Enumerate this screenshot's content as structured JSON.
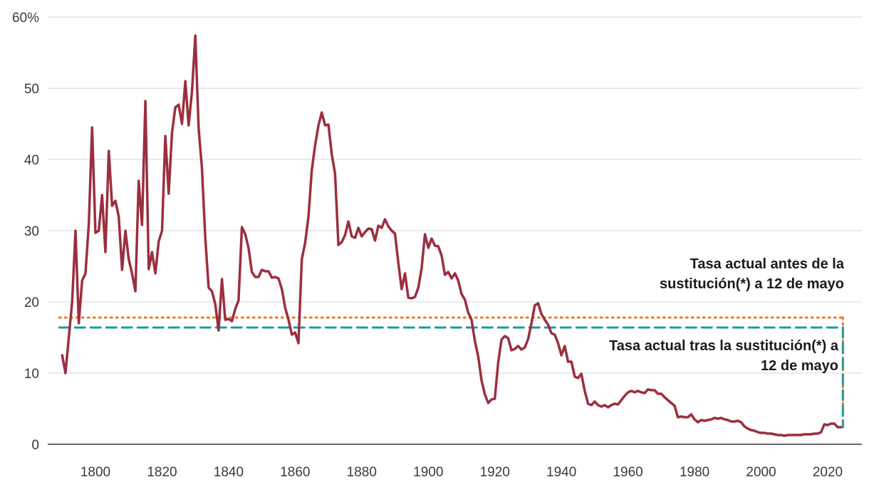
{
  "chart_data": {
    "type": "line",
    "x_ticks": [
      1800,
      1820,
      1840,
      1860,
      1880,
      1900,
      1920,
      1940,
      1960,
      1980,
      2000,
      2020
    ],
    "y_ticks": [
      0,
      10,
      20,
      30,
      40,
      50,
      60
    ],
    "y_tick_labels": [
      "0",
      "10",
      "20",
      "30",
      "40",
      "50",
      "60%"
    ],
    "xlim": [
      1785,
      2028
    ],
    "ylim": [
      0,
      60
    ],
    "grid": "horizontal",
    "series": [
      {
        "color": "#9b2f3f",
        "points": [
          [
            1790,
            12.5
          ],
          [
            1791,
            10.0
          ],
          [
            1792,
            15.0
          ],
          [
            1793,
            20.0
          ],
          [
            1794,
            30.0
          ],
          [
            1795,
            17.0
          ],
          [
            1796,
            23.0
          ],
          [
            1797,
            24.0
          ],
          [
            1798,
            31.0
          ],
          [
            1799,
            44.5
          ],
          [
            1800,
            29.7
          ],
          [
            1801,
            30.0
          ],
          [
            1802,
            35.0
          ],
          [
            1803,
            27.0
          ],
          [
            1804,
            41.2
          ],
          [
            1805,
            33.5
          ],
          [
            1806,
            34.2
          ],
          [
            1807,
            32.0
          ],
          [
            1808,
            24.5
          ],
          [
            1809,
            30.0
          ],
          [
            1810,
            26.0
          ],
          [
            1811,
            24.0
          ],
          [
            1812,
            21.5
          ],
          [
            1813,
            37.0
          ],
          [
            1814,
            30.8
          ],
          [
            1815,
            48.2
          ],
          [
            1816,
            24.6
          ],
          [
            1817,
            27.0
          ],
          [
            1818,
            24.0
          ],
          [
            1819,
            28.5
          ],
          [
            1820,
            30.0
          ],
          [
            1821,
            43.3
          ],
          [
            1822,
            35.2
          ],
          [
            1823,
            43.8
          ],
          [
            1824,
            47.3
          ],
          [
            1825,
            47.7
          ],
          [
            1826,
            45.0
          ],
          [
            1827,
            51.0
          ],
          [
            1828,
            44.8
          ],
          [
            1829,
            49.5
          ],
          [
            1830,
            57.4
          ],
          [
            1831,
            44.3
          ],
          [
            1832,
            38.8
          ],
          [
            1833,
            29.0
          ],
          [
            1834,
            22.0
          ],
          [
            1835,
            21.5
          ],
          [
            1836,
            19.7
          ],
          [
            1837,
            16.0
          ],
          [
            1838,
            23.2
          ],
          [
            1839,
            17.5
          ],
          [
            1840,
            17.6
          ],
          [
            1841,
            17.3
          ],
          [
            1842,
            19.0
          ],
          [
            1843,
            20.2
          ],
          [
            1844,
            30.5
          ],
          [
            1845,
            29.5
          ],
          [
            1846,
            27.6
          ],
          [
            1847,
            24.2
          ],
          [
            1848,
            23.5
          ],
          [
            1849,
            23.5
          ],
          [
            1850,
            24.5
          ],
          [
            1851,
            24.3
          ],
          [
            1852,
            24.3
          ],
          [
            1853,
            23.4
          ],
          [
            1854,
            23.5
          ],
          [
            1855,
            23.3
          ],
          [
            1856,
            21.8
          ],
          [
            1857,
            19.2
          ],
          [
            1858,
            17.5
          ],
          [
            1859,
            15.4
          ],
          [
            1860,
            15.7
          ],
          [
            1861,
            14.2
          ],
          [
            1862,
            26.0
          ],
          [
            1863,
            28.3
          ],
          [
            1864,
            32.0
          ],
          [
            1865,
            38.5
          ],
          [
            1866,
            42.0
          ],
          [
            1867,
            44.8
          ],
          [
            1868,
            46.6
          ],
          [
            1869,
            44.8
          ],
          [
            1870,
            44.9
          ],
          [
            1871,
            40.7
          ],
          [
            1872,
            38.0
          ],
          [
            1873,
            28.0
          ],
          [
            1874,
            28.4
          ],
          [
            1875,
            29.4
          ],
          [
            1876,
            31.3
          ],
          [
            1877,
            29.2
          ],
          [
            1878,
            29.0
          ],
          [
            1879,
            30.4
          ],
          [
            1880,
            29.2
          ],
          [
            1881,
            29.8
          ],
          [
            1882,
            30.3
          ],
          [
            1883,
            30.2
          ],
          [
            1884,
            28.6
          ],
          [
            1885,
            30.7
          ],
          [
            1886,
            30.4
          ],
          [
            1887,
            31.6
          ],
          [
            1888,
            30.6
          ],
          [
            1889,
            30.0
          ],
          [
            1890,
            29.6
          ],
          [
            1891,
            25.5
          ],
          [
            1892,
            21.8
          ],
          [
            1893,
            24.0
          ],
          [
            1894,
            20.6
          ],
          [
            1895,
            20.5
          ],
          [
            1896,
            20.7
          ],
          [
            1897,
            22.0
          ],
          [
            1898,
            24.7
          ],
          [
            1899,
            29.5
          ],
          [
            1900,
            27.6
          ],
          [
            1901,
            28.9
          ],
          [
            1902,
            27.9
          ],
          [
            1903,
            27.8
          ],
          [
            1904,
            26.5
          ],
          [
            1905,
            23.8
          ],
          [
            1906,
            24.2
          ],
          [
            1907,
            23.3
          ],
          [
            1908,
            24.0
          ],
          [
            1909,
            23.0
          ],
          [
            1910,
            21.1
          ],
          [
            1911,
            20.3
          ],
          [
            1912,
            18.5
          ],
          [
            1913,
            17.5
          ],
          [
            1914,
            14.5
          ],
          [
            1915,
            12.3
          ],
          [
            1916,
            9.0
          ],
          [
            1917,
            7.0
          ],
          [
            1918,
            5.8
          ],
          [
            1919,
            6.3
          ],
          [
            1920,
            6.4
          ],
          [
            1921,
            11.5
          ],
          [
            1922,
            14.7
          ],
          [
            1923,
            15.2
          ],
          [
            1924,
            14.9
          ],
          [
            1925,
            13.2
          ],
          [
            1926,
            13.4
          ],
          [
            1927,
            13.8
          ],
          [
            1928,
            13.3
          ],
          [
            1929,
            13.6
          ],
          [
            1930,
            14.8
          ],
          [
            1931,
            17.0
          ],
          [
            1932,
            19.5
          ],
          [
            1933,
            19.8
          ],
          [
            1934,
            18.3
          ],
          [
            1935,
            17.5
          ],
          [
            1936,
            16.8
          ],
          [
            1937,
            15.6
          ],
          [
            1938,
            15.4
          ],
          [
            1939,
            14.2
          ],
          [
            1940,
            12.5
          ],
          [
            1941,
            13.8
          ],
          [
            1942,
            11.6
          ],
          [
            1943,
            11.6
          ],
          [
            1944,
            9.5
          ],
          [
            1945,
            9.3
          ],
          [
            1946,
            9.9
          ],
          [
            1947,
            7.5
          ],
          [
            1948,
            5.7
          ],
          [
            1949,
            5.5
          ],
          [
            1950,
            6.0
          ],
          [
            1951,
            5.5
          ],
          [
            1952,
            5.3
          ],
          [
            1953,
            5.5
          ],
          [
            1954,
            5.2
          ],
          [
            1955,
            5.5
          ],
          [
            1956,
            5.7
          ],
          [
            1957,
            5.6
          ],
          [
            1958,
            6.2
          ],
          [
            1959,
            6.8
          ],
          [
            1960,
            7.3
          ],
          [
            1961,
            7.5
          ],
          [
            1962,
            7.3
          ],
          [
            1963,
            7.5
          ],
          [
            1964,
            7.3
          ],
          [
            1965,
            7.2
          ],
          [
            1966,
            7.7
          ],
          [
            1967,
            7.6
          ],
          [
            1968,
            7.6
          ],
          [
            1969,
            7.1
          ],
          [
            1970,
            7.1
          ],
          [
            1971,
            6.6
          ],
          [
            1972,
            6.2
          ],
          [
            1973,
            5.8
          ],
          [
            1974,
            5.4
          ],
          [
            1975,
            3.8
          ],
          [
            1976,
            3.9
          ],
          [
            1977,
            3.8
          ],
          [
            1978,
            3.8
          ],
          [
            1979,
            4.2
          ],
          [
            1980,
            3.5
          ],
          [
            1981,
            3.1
          ],
          [
            1982,
            3.4
          ],
          [
            1983,
            3.3
          ],
          [
            1984,
            3.4
          ],
          [
            1985,
            3.5
          ],
          [
            1986,
            3.7
          ],
          [
            1987,
            3.6
          ],
          [
            1988,
            3.7
          ],
          [
            1989,
            3.5
          ],
          [
            1990,
            3.4
          ],
          [
            1991,
            3.2
          ],
          [
            1992,
            3.2
          ],
          [
            1993,
            3.3
          ],
          [
            1994,
            3.1
          ],
          [
            1995,
            2.5
          ],
          [
            1996,
            2.2
          ],
          [
            1997,
            2.0
          ],
          [
            1998,
            1.9
          ],
          [
            1999,
            1.7
          ],
          [
            2000,
            1.6
          ],
          [
            2001,
            1.6
          ],
          [
            2002,
            1.5
          ],
          [
            2003,
            1.5
          ],
          [
            2004,
            1.4
          ],
          [
            2005,
            1.3
          ],
          [
            2006,
            1.3
          ],
          [
            2007,
            1.2
          ],
          [
            2008,
            1.3
          ],
          [
            2009,
            1.3
          ],
          [
            2010,
            1.3
          ],
          [
            2011,
            1.3
          ],
          [
            2012,
            1.3
          ],
          [
            2013,
            1.4
          ],
          [
            2014,
            1.4
          ],
          [
            2015,
            1.4
          ],
          [
            2016,
            1.5
          ],
          [
            2017,
            1.5
          ],
          [
            2018,
            1.7
          ],
          [
            2019,
            2.8
          ],
          [
            2020,
            2.7
          ],
          [
            2021,
            2.9
          ],
          [
            2022,
            2.9
          ],
          [
            2023,
            2.4
          ],
          [
            2024,
            2.4
          ]
        ]
      }
    ],
    "reference_lines": [
      {
        "value": 17.8,
        "x_start": 1790,
        "x_end": 2025,
        "style": "dotted",
        "color": "#f07a1e"
      },
      {
        "value": 16.4,
        "x_start": 1790,
        "x_end": 2025,
        "style": "dashed",
        "color": "#1e9a9d"
      }
    ],
    "annotations": [
      {
        "lines": [
          "Tasa actual antes de la",
          "sustitución(*) a 12 de mayo"
        ]
      },
      {
        "lines": [
          "Tasa actual tras la sustitución(*) a",
          "12 de mayo"
        ]
      }
    ]
  }
}
